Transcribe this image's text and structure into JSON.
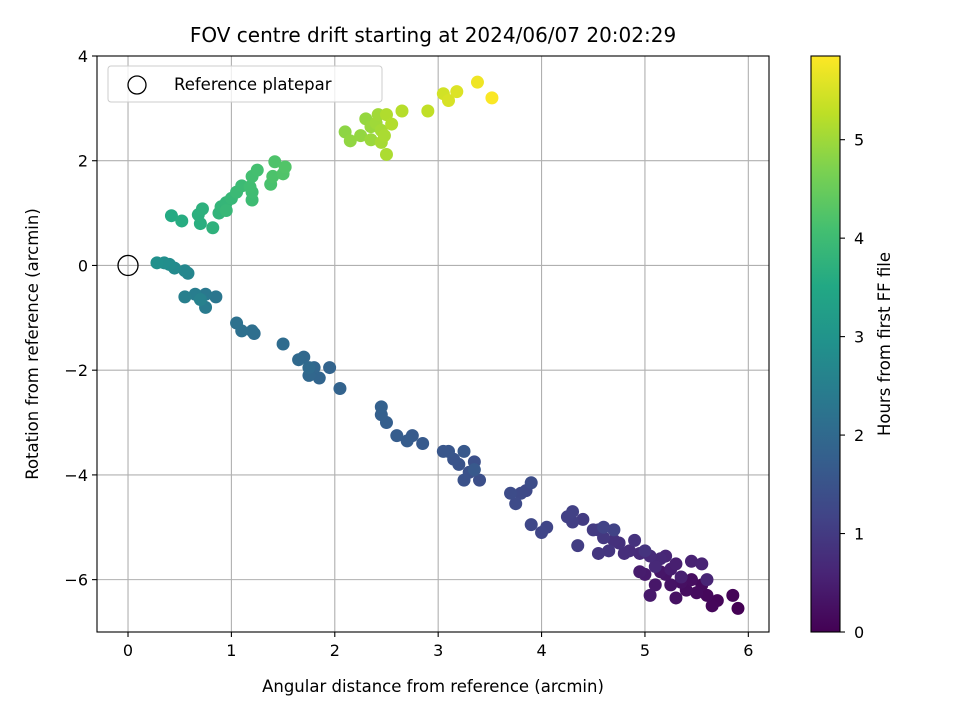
{
  "chart_data": {
    "type": "scatter",
    "title": "FOV centre drift starting at 2024/06/07 20:02:29",
    "xlabel": "Angular distance from reference (arcmin)",
    "ylabel": "Rotation from reference (arcmin)",
    "colorbar_label": "Hours from first FF file",
    "colormap": "viridis",
    "xlim": [
      -0.3,
      6.2
    ],
    "ylim": [
      -7.0,
      4.0
    ],
    "clim": [
      0,
      5.85
    ],
    "x_ticks": [
      0,
      1,
      2,
      3,
      4,
      5,
      6
    ],
    "x_tick_labels": [
      "0",
      "1",
      "2",
      "3",
      "4",
      "5",
      "6"
    ],
    "y_ticks": [
      -6,
      -4,
      -2,
      0,
      2,
      4
    ],
    "y_tick_labels": [
      "−6",
      "−4",
      "−2",
      "0",
      "2",
      "4"
    ],
    "colorbar_ticks": [
      0,
      1,
      2,
      3,
      4,
      5
    ],
    "colorbar_tick_labels": [
      "0",
      "1",
      "2",
      "3",
      "4",
      "5"
    ],
    "grid": true,
    "legend_position": "top-left",
    "reference": {
      "label": "Reference platepar",
      "x": 0,
      "y": 0,
      "marker": "open-circle"
    },
    "points": [
      [
        5.9,
        -6.55,
        0.0
      ],
      [
        5.85,
        -6.3,
        0.05
      ],
      [
        5.7,
        -6.4,
        0.08
      ],
      [
        5.65,
        -6.5,
        0.1
      ],
      [
        5.6,
        -6.3,
        0.12
      ],
      [
        5.55,
        -6.1,
        0.15
      ],
      [
        5.5,
        -6.25,
        0.17
      ],
      [
        5.4,
        -6.2,
        0.2
      ],
      [
        5.45,
        -6.0,
        0.22
      ],
      [
        5.35,
        -6.05,
        0.25
      ],
      [
        5.3,
        -6.35,
        0.27
      ],
      [
        5.25,
        -6.1,
        0.3
      ],
      [
        5.2,
        -5.9,
        0.32
      ],
      [
        5.15,
        -5.85,
        0.35
      ],
      [
        5.1,
        -6.1,
        0.37
      ],
      [
        5.05,
        -6.3,
        0.4
      ],
      [
        5.0,
        -5.9,
        0.42
      ],
      [
        4.95,
        -5.85,
        0.45
      ],
      [
        5.25,
        -5.8,
        0.47
      ],
      [
        5.3,
        -5.7,
        0.5
      ],
      [
        5.35,
        -5.95,
        0.52
      ],
      [
        5.45,
        -5.65,
        0.55
      ],
      [
        5.55,
        -5.7,
        0.57
      ],
      [
        5.6,
        -6.0,
        0.6
      ],
      [
        5.2,
        -5.55,
        0.62
      ],
      [
        5.15,
        -5.6,
        0.65
      ],
      [
        5.1,
        -5.75,
        0.67
      ],
      [
        5.05,
        -5.55,
        0.7
      ],
      [
        4.95,
        -5.5,
        0.72
      ],
      [
        4.85,
        -5.45,
        0.75
      ],
      [
        4.8,
        -5.5,
        0.77
      ],
      [
        4.75,
        -5.3,
        0.8
      ],
      [
        4.7,
        -5.25,
        0.82
      ],
      [
        4.9,
        -5.25,
        0.85
      ],
      [
        5.0,
        -5.45,
        0.87
      ],
      [
        4.65,
        -5.45,
        0.9
      ],
      [
        4.55,
        -5.5,
        0.92
      ],
      [
        4.6,
        -5.2,
        0.95
      ],
      [
        4.55,
        -5.05,
        0.97
      ],
      [
        4.5,
        -5.05,
        1.0
      ],
      [
        4.4,
        -4.85,
        1.02
      ],
      [
        4.35,
        -5.35,
        1.05
      ],
      [
        4.3,
        -4.9,
        1.07
      ],
      [
        4.25,
        -4.8,
        1.1
      ],
      [
        4.3,
        -4.7,
        1.12
      ],
      [
        4.7,
        -5.05,
        1.15
      ],
      [
        4.6,
        -5.0,
        1.17
      ],
      [
        4.05,
        -5.0,
        1.2
      ],
      [
        4.0,
        -5.1,
        1.22
      ],
      [
        3.9,
        -4.95,
        1.25
      ],
      [
        3.85,
        -4.3,
        1.27
      ],
      [
        3.8,
        -4.35,
        1.3
      ],
      [
        3.75,
        -4.55,
        1.32
      ],
      [
        3.7,
        -4.35,
        1.35
      ],
      [
        3.9,
        -4.15,
        1.37
      ],
      [
        3.4,
        -4.1,
        1.4
      ],
      [
        3.35,
        -3.75,
        1.42
      ],
      [
        3.3,
        -3.95,
        1.45
      ],
      [
        3.25,
        -4.1,
        1.47
      ],
      [
        3.2,
        -3.8,
        1.5
      ],
      [
        3.15,
        -3.7,
        1.52
      ],
      [
        3.1,
        -3.55,
        1.55
      ],
      [
        3.05,
        -3.55,
        1.57
      ],
      [
        3.25,
        -3.55,
        1.6
      ],
      [
        3.35,
        -3.9,
        1.62
      ],
      [
        2.85,
        -3.4,
        1.65
      ],
      [
        2.75,
        -3.25,
        1.67
      ],
      [
        2.7,
        -3.35,
        1.7
      ],
      [
        2.6,
        -3.25,
        1.72
      ],
      [
        2.5,
        -3.0,
        1.75
      ],
      [
        2.45,
        -2.85,
        1.77
      ],
      [
        2.45,
        -2.7,
        1.8
      ],
      [
        2.05,
        -2.35,
        1.85
      ],
      [
        1.95,
        -1.95,
        1.88
      ],
      [
        1.85,
        -2.15,
        1.9
      ],
      [
        1.8,
        -1.95,
        1.92
      ],
      [
        1.75,
        -2.1,
        1.95
      ],
      [
        1.7,
        -1.75,
        1.97
      ],
      [
        1.65,
        -1.8,
        2.0
      ],
      [
        1.75,
        -1.95,
        2.02
      ],
      [
        1.5,
        -1.5,
        2.05
      ],
      [
        1.22,
        -1.3,
        2.1
      ],
      [
        1.2,
        -1.25,
        2.12
      ],
      [
        1.1,
        -1.25,
        2.15
      ],
      [
        1.05,
        -1.1,
        2.17
      ],
      [
        0.85,
        -0.6,
        2.3
      ],
      [
        0.75,
        -0.55,
        2.35
      ],
      [
        0.75,
        -0.8,
        2.4
      ],
      [
        0.65,
        -0.55,
        2.45
      ],
      [
        0.55,
        -0.6,
        2.5
      ],
      [
        0.7,
        -0.65,
        2.55
      ],
      [
        0.58,
        -0.15,
        2.65
      ],
      [
        0.55,
        -0.1,
        2.7
      ],
      [
        0.45,
        -0.05,
        2.75
      ],
      [
        0.4,
        0.02,
        2.8
      ],
      [
        0.35,
        0.05,
        2.85
      ],
      [
        0.28,
        0.05,
        2.9
      ],
      [
        0.42,
        0.95,
        3.55
      ],
      [
        0.52,
        0.85,
        3.6
      ],
      [
        0.7,
        0.8,
        3.65
      ],
      [
        0.68,
        0.97,
        3.7
      ],
      [
        0.72,
        1.08,
        3.72
      ],
      [
        0.82,
        0.72,
        3.75
      ],
      [
        0.88,
        1.0,
        3.8
      ],
      [
        0.9,
        1.12,
        3.82
      ],
      [
        0.95,
        1.2,
        3.85
      ],
      [
        1.0,
        1.28,
        3.88
      ],
      [
        0.95,
        1.05,
        3.9
      ],
      [
        1.05,
        1.4,
        3.95
      ],
      [
        1.1,
        1.52,
        3.98
      ],
      [
        1.2,
        1.25,
        4.0
      ],
      [
        1.2,
        1.4,
        4.02
      ],
      [
        1.18,
        1.5,
        4.05
      ],
      [
        1.2,
        1.7,
        4.08
      ],
      [
        1.25,
        1.82,
        4.1
      ],
      [
        1.38,
        1.55,
        4.15
      ],
      [
        1.4,
        1.7,
        4.18
      ],
      [
        1.42,
        1.98,
        4.2
      ],
      [
        1.5,
        1.75,
        4.22
      ],
      [
        1.52,
        1.88,
        4.25
      ],
      [
        2.1,
        2.55,
        4.85
      ],
      [
        2.15,
        2.38,
        4.88
      ],
      [
        2.25,
        2.48,
        4.9
      ],
      [
        2.3,
        2.8,
        4.92
      ],
      [
        2.35,
        2.65,
        4.95
      ],
      [
        2.35,
        2.4,
        4.97
      ],
      [
        2.4,
        2.72,
        5.0
      ],
      [
        2.42,
        2.88,
        5.02
      ],
      [
        2.45,
        2.58,
        5.05
      ],
      [
        2.45,
        2.35,
        5.07
      ],
      [
        2.48,
        2.48,
        5.1
      ],
      [
        2.5,
        2.12,
        5.12
      ],
      [
        2.5,
        2.88,
        5.15
      ],
      [
        2.55,
        2.7,
        5.17
      ],
      [
        2.65,
        2.95,
        5.2
      ],
      [
        2.9,
        2.95,
        5.3
      ],
      [
        3.05,
        3.28,
        5.45
      ],
      [
        3.1,
        3.15,
        5.5
      ],
      [
        3.18,
        3.32,
        5.55
      ],
      [
        3.38,
        3.5,
        5.72
      ],
      [
        3.52,
        3.2,
        5.82
      ]
    ]
  }
}
